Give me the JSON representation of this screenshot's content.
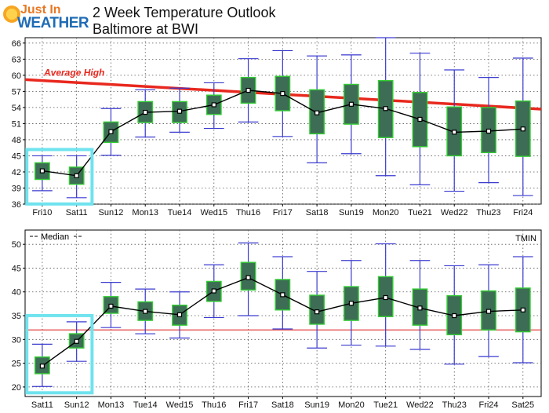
{
  "header": {
    "logo_line1": "Just In",
    "logo_line2": "WEATHER",
    "title": "2 Week Temperature Outlook",
    "subtitle": "Baltimore at BWI"
  },
  "colors": {
    "box_fill": "#3d6e55",
    "box_edge": "#33cc33",
    "whisker": "#3a3ad0",
    "median_line": "#000000",
    "average_high": "#e8281e",
    "tmin_ref": "#e03030",
    "highlight": "#6fe3ee"
  },
  "chart_data": [
    {
      "type": "box",
      "title": "",
      "ylim": [
        36,
        67
      ],
      "yticks": [
        36,
        39,
        42,
        45,
        48,
        51,
        54,
        57,
        60,
        63,
        66
      ],
      "grid": true,
      "annotation": "Average High",
      "average_high": [
        59.2,
        53.7
      ],
      "categories": [
        "Fri10",
        "Sat11",
        "Sun12",
        "Mon13",
        "Tue14",
        "Wed15",
        "Thu16",
        "Fri17",
        "Sat18",
        "Sun19",
        "Mon20",
        "Tue21",
        "Wed22",
        "Thu23",
        "Fri24"
      ],
      "median": [
        42.2,
        41.3,
        49.5,
        53.1,
        53.3,
        54.5,
        57.2,
        56.6,
        53.0,
        54.6,
        53.8,
        51.8,
        49.4,
        49.6,
        50.0
      ],
      "q1": [
        40.6,
        39.7,
        47.5,
        51.2,
        51.2,
        52.7,
        54.8,
        53.4,
        49.1,
        50.9,
        48.4,
        46.7,
        45.0,
        45.6,
        44.9
      ],
      "q3": [
        43.7,
        42.9,
        51.3,
        55.1,
        55.1,
        56.3,
        59.6,
        59.8,
        57.3,
        58.3,
        59.0,
        56.8,
        54.1,
        54.0,
        55.2
      ],
      "low": [
        38.5,
        37.2,
        45.1,
        48.5,
        49.4,
        50.1,
        51.3,
        48.6,
        43.7,
        45.4,
        41.3,
        39.6,
        38.4,
        40.0,
        37.6
      ],
      "high": [
        45.0,
        45.0,
        53.8,
        57.3,
        57.6,
        58.6,
        63.1,
        64.6,
        63.6,
        63.8,
        67.0,
        64.1,
        61.0,
        59.6,
        63.2
      ],
      "highlight_range": [
        "Fri10",
        "Sat11"
      ]
    },
    {
      "type": "box",
      "title": "",
      "ylim": [
        18,
        53
      ],
      "yticks": [
        20,
        25,
        30,
        35,
        40,
        45,
        50
      ],
      "grid": true,
      "legend": "Median",
      "series_label": "TMIN",
      "reference_line": 32,
      "categories": [
        "Sat11",
        "Sun12",
        "Mon13",
        "Tue14",
        "Wed15",
        "Thu16",
        "Fri17",
        "Sat18",
        "Sun19",
        "Mon20",
        "Tue21",
        "Wed22",
        "Thu23",
        "Fri24",
        "Sat25"
      ],
      "median": [
        24.4,
        29.6,
        37.0,
        35.9,
        35.2,
        40.2,
        43.0,
        39.4,
        35.8,
        37.6,
        38.8,
        36.6,
        35.0,
        35.9,
        36.2
      ],
      "q1": [
        22.8,
        28.2,
        35.5,
        34.0,
        33.0,
        38.0,
        40.4,
        36.2,
        33.2,
        34.0,
        34.8,
        33.0,
        31.0,
        32.0,
        31.6
      ],
      "q3": [
        26.3,
        31.2,
        39.0,
        37.9,
        37.2,
        42.2,
        46.2,
        42.6,
        39.3,
        41.1,
        43.2,
        40.6,
        39.2,
        40.2,
        40.8
      ],
      "low": [
        20.1,
        25.4,
        32.5,
        31.2,
        30.3,
        34.6,
        35.0,
        32.2,
        28.2,
        28.8,
        28.6,
        27.9,
        24.8,
        26.4,
        25.1
      ],
      "high": [
        29.0,
        33.7,
        42.0,
        40.6,
        40.0,
        45.7,
        50.3,
        47.4,
        44.3,
        46.6,
        50.1,
        46.6,
        45.5,
        45.7,
        47.4
      ],
      "highlight_range": [
        "Sat11",
        "Sun12"
      ]
    }
  ]
}
